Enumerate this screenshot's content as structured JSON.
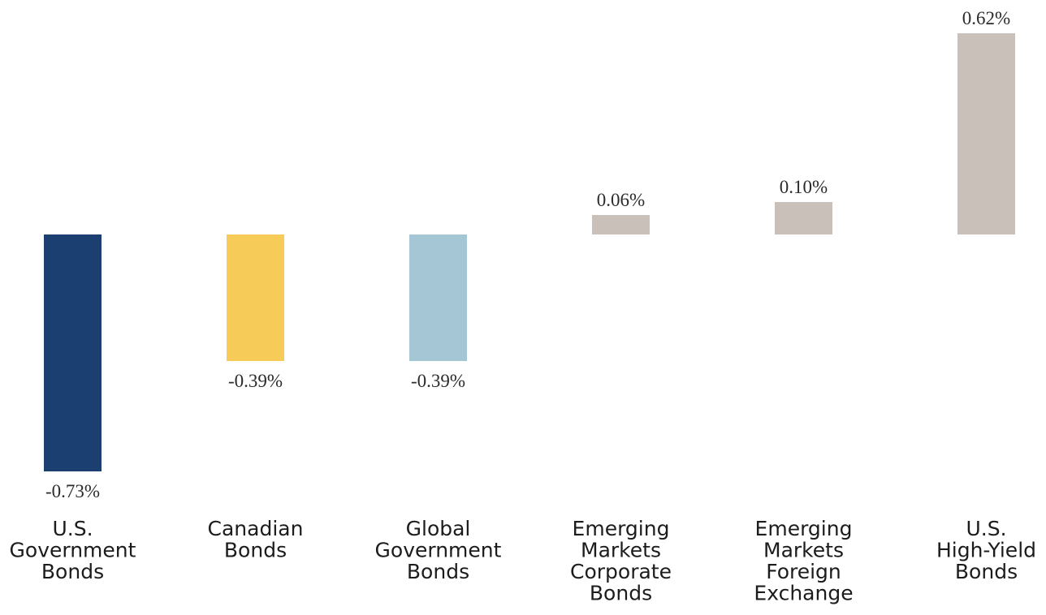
{
  "chart_data": {
    "type": "bar",
    "categories": [
      "U.S. Government Bonds",
      "Canadian Bonds",
      "Global Government Bonds",
      "Emerging Markets Corporate Bonds",
      "Emerging Markets Foreign Exchange",
      "U.S. High-Yield Bonds"
    ],
    "category_lines": [
      [
        "U.S.",
        "Government",
        "Bonds"
      ],
      [
        "Canadian",
        "Bonds"
      ],
      [
        "Global",
        "Government",
        "Bonds"
      ],
      [
        "Emerging",
        "Markets",
        "Corporate",
        "Bonds"
      ],
      [
        "Emerging",
        "Markets",
        "Foreign",
        "Exchange"
      ],
      [
        "U.S.",
        "High-Yield",
        "Bonds"
      ]
    ],
    "values": [
      -0.73,
      -0.39,
      -0.39,
      0.06,
      0.1,
      0.62
    ],
    "value_labels": [
      "-0.73%",
      "-0.39%",
      "-0.39%",
      "0.06%",
      "0.10%",
      "0.62%"
    ],
    "colors": [
      "#1b3f70",
      "#f6cb58",
      "#a5c6d4",
      "#c8c0b9",
      "#c8c0b9",
      "#c8c0b9"
    ],
    "title": "",
    "xlabel": "",
    "ylabel": "",
    "ylim": [
      -0.73,
      0.62
    ],
    "grid": false,
    "legend": "none"
  }
}
